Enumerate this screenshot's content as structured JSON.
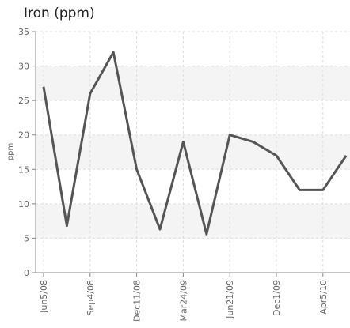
{
  "chart_data": {
    "type": "line",
    "title": "Iron (ppm)",
    "y_label": "ppm",
    "categories": [
      "Jun5/08",
      null,
      "Sep4/08",
      null,
      "Dec11/08",
      null,
      "Mar24/09",
      null,
      "Jun21/09",
      null,
      "Dec1/09",
      null,
      "Apr5/10",
      null
    ],
    "values": [
      27,
      6.8,
      26,
      32,
      15,
      6.3,
      19,
      5.6,
      20,
      19,
      17,
      12,
      12,
      17
    ],
    "color": "#555555",
    "ylim": [
      0,
      35
    ],
    "yticks": [
      0,
      5,
      10,
      15,
      20,
      25,
      30,
      35
    ],
    "grid": true
  }
}
